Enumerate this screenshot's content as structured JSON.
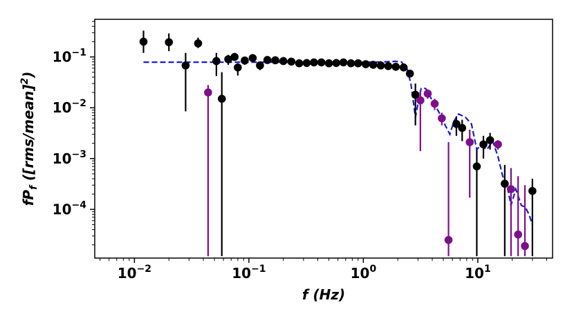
{
  "chart_data": {
    "type": "scatter",
    "title": "",
    "xlabel": "f (Hz)",
    "ylabel": "fP_f ([rms/mean]^2)",
    "xscale": "log",
    "yscale": "log",
    "xlim": [
      0.0045,
      45
    ],
    "ylim": [
      1.1e-05,
      0.55
    ],
    "grid": false,
    "x_ticks": [
      {
        "base": "10",
        "exp": "−2",
        "value": 0.01
      },
      {
        "base": "10",
        "exp": "−1",
        "value": 0.1
      },
      {
        "base": "10",
        "exp": "0",
        "value": 1
      },
      {
        "base": "10",
        "exp": "1",
        "value": 10
      }
    ],
    "y_ticks": [
      {
        "base": "10",
        "exp": "−4",
        "value": 0.0001
      },
      {
        "base": "10",
        "exp": "−3",
        "value": 0.001
      },
      {
        "base": "10",
        "exp": "−2",
        "value": 0.01
      },
      {
        "base": "10",
        "exp": "−1",
        "value": 0.1
      }
    ],
    "series": [
      {
        "color": "#000000",
        "marker": "circle",
        "points": [
          {
            "x": 0.012,
            "y": 0.2,
            "ylo": 0.12,
            "yhi": 0.33
          },
          {
            "x": 0.02,
            "y": 0.195,
            "ylo": 0.13,
            "yhi": 0.29
          },
          {
            "x": 0.028,
            "y": 0.068,
            "ylo": 0.0085,
            "yhi": 0.12
          },
          {
            "x": 0.036,
            "y": 0.185,
            "ylo": 0.15,
            "yhi": 0.24
          },
          {
            "x": 0.052,
            "y": 0.083,
            "ylo": 0.042,
            "yhi": 0.12
          },
          {
            "x": 0.058,
            "y": 0.015,
            "ylo": 1.2e-05,
            "yhi": 0.05
          },
          {
            "x": 0.066,
            "y": 0.09,
            "ylo": 0.07,
            "yhi": 0.11
          },
          {
            "x": 0.075,
            "y": 0.1,
            "ylo": 0.085,
            "yhi": 0.12
          },
          {
            "x": 0.08,
            "y": 0.062,
            "ylo": 0.043,
            "yhi": 0.075
          },
          {
            "x": 0.092,
            "y": 0.085,
            "ylo": 0.07,
            "yhi": 0.1
          },
          {
            "x": 0.108,
            "y": 0.095,
            "ylo": 0.08,
            "yhi": 0.11
          },
          {
            "x": 0.125,
            "y": 0.068,
            "ylo": 0.055,
            "yhi": 0.08
          },
          {
            "x": 0.145,
            "y": 0.087,
            "ylo": 0.077,
            "yhi": 0.097
          },
          {
            "x": 0.17,
            "y": 0.086,
            "ylo": 0.077,
            "yhi": 0.095
          },
          {
            "x": 0.2,
            "y": 0.083,
            "ylo": 0.075,
            "yhi": 0.091
          },
          {
            "x": 0.235,
            "y": 0.081,
            "ylo": 0.074,
            "yhi": 0.088
          },
          {
            "x": 0.275,
            "y": 0.075,
            "ylo": 0.069,
            "yhi": 0.081
          },
          {
            "x": 0.32,
            "y": 0.076,
            "ylo": 0.07,
            "yhi": 0.082
          },
          {
            "x": 0.37,
            "y": 0.078,
            "ylo": 0.072,
            "yhi": 0.084
          },
          {
            "x": 0.43,
            "y": 0.078,
            "ylo": 0.073,
            "yhi": 0.083
          },
          {
            "x": 0.5,
            "y": 0.075,
            "ylo": 0.07,
            "yhi": 0.08
          },
          {
            "x": 0.58,
            "y": 0.076,
            "ylo": 0.071,
            "yhi": 0.081
          },
          {
            "x": 0.67,
            "y": 0.078,
            "ylo": 0.073,
            "yhi": 0.083
          },
          {
            "x": 0.78,
            "y": 0.075,
            "ylo": 0.07,
            "yhi": 0.08
          },
          {
            "x": 0.9,
            "y": 0.075,
            "ylo": 0.07,
            "yhi": 0.08
          },
          {
            "x": 1.05,
            "y": 0.072,
            "ylo": 0.067,
            "yhi": 0.077
          },
          {
            "x": 1.22,
            "y": 0.07,
            "ylo": 0.065,
            "yhi": 0.075
          },
          {
            "x": 1.42,
            "y": 0.068,
            "ylo": 0.063,
            "yhi": 0.073
          },
          {
            "x": 1.65,
            "y": 0.066,
            "ylo": 0.061,
            "yhi": 0.071
          },
          {
            "x": 1.92,
            "y": 0.064,
            "ylo": 0.059,
            "yhi": 0.069
          },
          {
            "x": 2.25,
            "y": 0.062,
            "ylo": 0.057,
            "yhi": 0.067
          },
          {
            "x": 2.55,
            "y": 0.047,
            "ylo": 0.04,
            "yhi": 0.054
          },
          {
            "x": 2.85,
            "y": 0.018,
            "ylo": 0.0045,
            "yhi": 0.03
          },
          {
            "x": 6.5,
            "y": 0.0048,
            "ylo": 0.0028,
            "yhi": 0.0068
          },
          {
            "x": 7.3,
            "y": 0.004,
            "ylo": 0.0022,
            "yhi": 0.0058
          },
          {
            "x": 9.8,
            "y": 0.0007,
            "ylo": 1.2e-05,
            "yhi": 0.0015
          },
          {
            "x": 11.2,
            "y": 0.0019,
            "ylo": 0.001,
            "yhi": 0.0028
          },
          {
            "x": 12.8,
            "y": 0.0023,
            "ylo": 0.0015,
            "yhi": 0.0032
          },
          {
            "x": 17.2,
            "y": 0.00032,
            "ylo": 1.2e-05,
            "yhi": 0.00075
          },
          {
            "x": 30,
            "y": 0.00023,
            "ylo": 1.2e-05,
            "yhi": 0.0004
          }
        ]
      },
      {
        "color": "#7d0f8a",
        "marker": "circle",
        "points": [
          {
            "x": 0.044,
            "y": 0.02,
            "ylo": 1.2e-05,
            "yhi": 0.028
          },
          {
            "x": 3.15,
            "y": 0.014,
            "ylo": 0.0014,
            "yhi": 0.022
          },
          {
            "x": 3.65,
            "y": 0.019,
            "ylo": 0.015,
            "yhi": 0.023
          },
          {
            "x": 4.2,
            "y": 0.012,
            "ylo": 0.009,
            "yhi": 0.015
          },
          {
            "x": 4.85,
            "y": 0.0062,
            "ylo": 0.0045,
            "yhi": 0.008
          },
          {
            "x": 5.55,
            "y": 2.5e-05,
            "ylo": 1.2e-05,
            "yhi": 0.0021
          },
          {
            "x": 8.5,
            "y": 0.0021,
            "ylo": 0.00017,
            "yhi": 0.0037
          },
          {
            "x": 15,
            "y": 0.0019,
            "ylo": 0.0015,
            "yhi": 0.0023
          },
          {
            "x": 19.5,
            "y": 0.00025,
            "ylo": 1.2e-05,
            "yhi": 0.00065
          },
          {
            "x": 22.5,
            "y": 3.2e-05,
            "ylo": 1.2e-05,
            "yhi": 0.00045
          },
          {
            "x": 25.8,
            "y": 1.9e-05,
            "ylo": 1.2e-05,
            "yhi": 0.0003
          }
        ]
      },
      {
        "color": "#1a1ad6",
        "line_style": "dashed",
        "points": [
          {
            "x": 0.012,
            "y": 0.079
          },
          {
            "x": 0.1,
            "y": 0.079
          },
          {
            "x": 0.5,
            "y": 0.079
          },
          {
            "x": 1.0,
            "y": 0.079
          },
          {
            "x": 1.5,
            "y": 0.08
          },
          {
            "x": 1.9,
            "y": 0.082
          },
          {
            "x": 2.15,
            "y": 0.08
          },
          {
            "x": 2.4,
            "y": 0.06
          },
          {
            "x": 2.6,
            "y": 0.03
          },
          {
            "x": 2.75,
            "y": 0.012
          },
          {
            "x": 2.85,
            "y": 0.0065
          },
          {
            "x": 3.0,
            "y": 0.012
          },
          {
            "x": 3.2,
            "y": 0.024
          },
          {
            "x": 3.5,
            "y": 0.024
          },
          {
            "x": 4.0,
            "y": 0.014
          },
          {
            "x": 4.6,
            "y": 0.008
          },
          {
            "x": 5.2,
            "y": 0.0045
          },
          {
            "x": 5.7,
            "y": 0.003
          },
          {
            "x": 6.2,
            "y": 0.0055
          },
          {
            "x": 6.8,
            "y": 0.0075
          },
          {
            "x": 7.8,
            "y": 0.0065
          },
          {
            "x": 8.8,
            "y": 0.0048
          },
          {
            "x": 9.8,
            "y": 0.0015
          },
          {
            "x": 10.5,
            "y": 0.0018
          },
          {
            "x": 12.0,
            "y": 0.0015
          },
          {
            "x": 13.5,
            "y": 0.0022
          },
          {
            "x": 15.0,
            "y": 0.0011
          },
          {
            "x": 16.5,
            "y": 0.00045
          },
          {
            "x": 18.0,
            "y": 0.0003
          },
          {
            "x": 19.5,
            "y": 0.00012
          },
          {
            "x": 21.5,
            "y": 0.00025
          },
          {
            "x": 24.0,
            "y": 0.00012
          },
          {
            "x": 26.0,
            "y": 0.00011
          },
          {
            "x": 28.0,
            "y": 8e-05
          },
          {
            "x": 30.0,
            "y": 5e-05
          }
        ]
      }
    ]
  }
}
